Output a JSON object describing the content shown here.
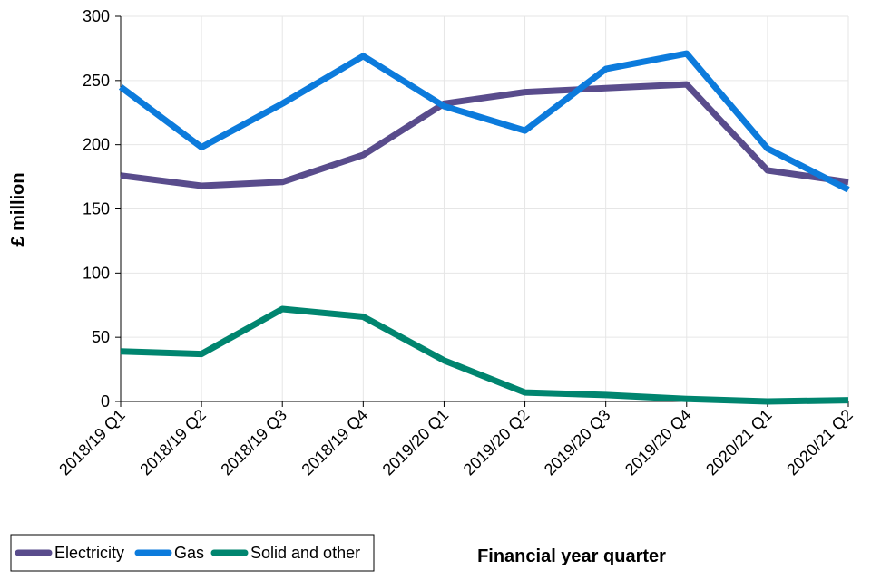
{
  "chart_data": {
    "type": "line",
    "title": "",
    "xlabel": "Financial year quarter",
    "ylabel": "£ million",
    "categories": [
      "2018/19 Q1",
      "2018/19 Q2",
      "2018/19 Q3",
      "2018/19 Q4",
      "2019/20 Q1",
      "2019/20 Q2",
      "2019/20 Q3",
      "2019/20 Q4",
      "2020/21 Q1",
      "2020/21 Q2"
    ],
    "ylim": [
      0,
      300
    ],
    "yticks": [
      0,
      50,
      100,
      150,
      200,
      250,
      300
    ],
    "grid": true,
    "legend_position": "bottom-left",
    "series": [
      {
        "name": "Electricity",
        "color": "#594C8C",
        "values": [
          176,
          168,
          171,
          192,
          232,
          241,
          244,
          247,
          180,
          171
        ]
      },
      {
        "name": "Gas",
        "color": "#0C7BDC",
        "values": [
          245,
          198,
          232,
          269,
          230,
          211,
          259,
          271,
          197,
          165
        ]
      },
      {
        "name": "Solid and other",
        "color": "#00856F",
        "values": [
          39,
          37,
          72,
          66,
          32,
          7,
          5,
          2,
          0,
          1
        ]
      }
    ]
  }
}
